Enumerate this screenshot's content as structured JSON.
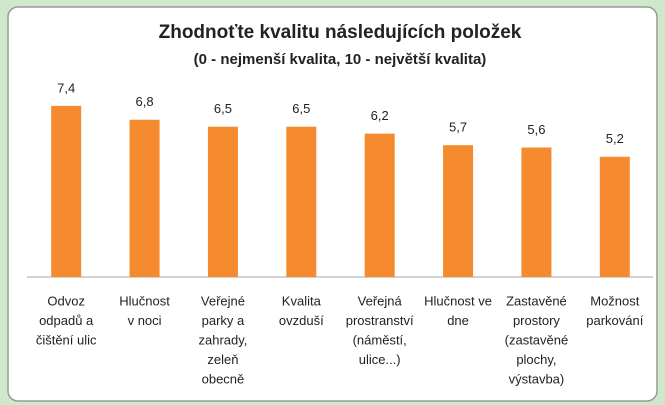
{
  "chart_data": {
    "type": "bar",
    "title": "Zhodnoťte kvalitu následujících položek",
    "subtitle": "(0 - nejmenší kvalita, 10 - největší kvalita)",
    "categories": [
      [
        "Odvoz",
        "odpadů a",
        "čištění ulic"
      ],
      [
        "Hlučnost",
        "v noci"
      ],
      [
        "Veřejné",
        "parky a",
        "zahrady,",
        "zeleň",
        "obecně"
      ],
      [
        "Kvalita",
        "ovzduší"
      ],
      [
        "Veřejná",
        "prostranství",
        "(náměstí,",
        "ulice...)"
      ],
      [
        "Hlučnost ve",
        "dne"
      ],
      [
        "Zastavěné",
        "prostory",
        "(zastavěné",
        "plochy,",
        "výstavba)"
      ],
      [
        "Možnost",
        "parkování"
      ]
    ],
    "values": [
      7.4,
      6.8,
      6.5,
      6.5,
      6.2,
      5.7,
      5.6,
      5.2
    ],
    "value_labels": [
      "7,4",
      "6,8",
      "6,5",
      "6,5",
      "6,2",
      "5,7",
      "5,6",
      "5,2"
    ],
    "color": "#f68a2e",
    "ylim": [
      0,
      8
    ]
  }
}
